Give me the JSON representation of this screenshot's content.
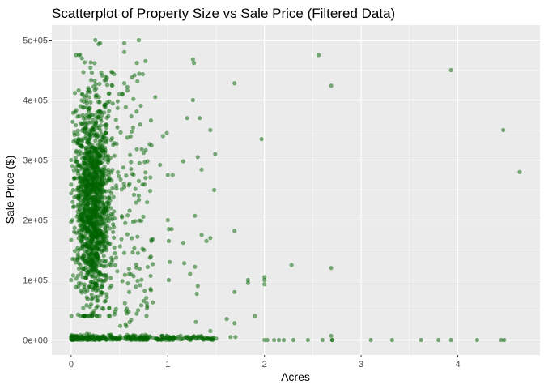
{
  "chart_data": {
    "type": "scatter",
    "title": "Scatterplot of Property Size vs Sale Price (Filtered Data)",
    "xlabel": "Acres",
    "ylabel": "Sale Price ($)",
    "xlim": [
      -0.2,
      4.85
    ],
    "ylim": [
      -25000,
      525000
    ],
    "x_ticks": [
      0,
      1,
      2,
      3,
      4
    ],
    "x_tick_labels": [
      "0",
      "1",
      "2",
      "3",
      "4"
    ],
    "y_ticks": [
      0,
      100000,
      200000,
      300000,
      400000,
      500000
    ],
    "y_tick_labels": [
      "0e+00",
      "1e+05",
      "2e+05",
      "3e+05",
      "4e+05",
      "5e+05"
    ],
    "grid": true,
    "legend": "none",
    "colors": {
      "point": "#006400",
      "panel": "#ebebeb",
      "grid": "#ffffff"
    },
    "point_alpha": 0.5,
    "points": [
      [
        0.05,
        475000
      ],
      [
        0.08,
        475000
      ],
      [
        0.25,
        500000
      ],
      [
        0.3,
        495000
      ],
      [
        0.55,
        495000
      ],
      [
        0.55,
        480000
      ],
      [
        0.7,
        500000
      ],
      [
        0.68,
        462000
      ],
      [
        0.77,
        465000
      ],
      [
        1.26,
        468000
      ],
      [
        1.27,
        462000
      ],
      [
        2.56,
        475000
      ],
      [
        3.93,
        450000
      ],
      [
        1.69,
        428000
      ],
      [
        2.69,
        424000
      ],
      [
        0.55,
        428000
      ],
      [
        0.63,
        438000
      ],
      [
        0.42,
        425000
      ],
      [
        0.5,
        410000
      ],
      [
        1.26,
        400000
      ],
      [
        0.87,
        405000
      ],
      [
        1.2,
        370000
      ],
      [
        1.33,
        370000
      ],
      [
        1.44,
        350000
      ],
      [
        0.99,
        345000
      ],
      [
        0.95,
        340000
      ],
      [
        1.97,
        335000
      ],
      [
        0.68,
        318000
      ],
      [
        0.73,
        318000
      ],
      [
        0.75,
        312000
      ],
      [
        0.79,
        298000
      ],
      [
        0.92,
        292000
      ],
      [
        1.16,
        298000
      ],
      [
        1.35,
        284000
      ],
      [
        1.49,
        310000
      ],
      [
        1.05,
        275000
      ],
      [
        1.0,
        275000
      ],
      [
        1.31,
        305000
      ],
      [
        1.48,
        250000
      ],
      [
        0.62,
        285000
      ],
      [
        0.7,
        265000
      ],
      [
        0.55,
        255000
      ],
      [
        4.47,
        350000
      ],
      [
        4.64,
        280000
      ],
      [
        1.0,
        200000
      ],
      [
        1.28,
        207000
      ],
      [
        1.01,
        185000
      ],
      [
        1.04,
        185000
      ],
      [
        1.35,
        175000
      ],
      [
        1.44,
        170000
      ],
      [
        1.16,
        162000
      ],
      [
        1.4,
        165000
      ],
      [
        1.69,
        182000
      ],
      [
        1.01,
        165000
      ],
      [
        0.56,
        195000
      ],
      [
        0.52,
        168000
      ],
      [
        0.55,
        145000
      ],
      [
        0.83,
        165000
      ],
      [
        1.02,
        130000
      ],
      [
        1.17,
        128000
      ],
      [
        1.28,
        122000
      ],
      [
        1.23,
        110000
      ],
      [
        1.31,
        90000
      ],
      [
        1.3,
        77000
      ],
      [
        1.69,
        80000
      ],
      [
        1.83,
        100000
      ],
      [
        1.83,
        95000
      ],
      [
        2.0,
        105000
      ],
      [
        2.0,
        100000
      ],
      [
        2.0,
        93000
      ],
      [
        2.28,
        125000
      ],
      [
        2.69,
        120000
      ],
      [
        0.82,
        85000
      ],
      [
        1.01,
        100000
      ],
      [
        0.6,
        110000
      ],
      [
        0.6,
        80000
      ],
      [
        0.75,
        65000
      ],
      [
        0.78,
        40000
      ],
      [
        1.29,
        30000
      ],
      [
        1.69,
        28000
      ],
      [
        1.9,
        40000
      ],
      [
        1.61,
        35000
      ],
      [
        1.44,
        15000
      ],
      [
        1.65,
        5000
      ],
      [
        1.7,
        5000
      ],
      [
        2.69,
        7000
      ],
      [
        2.7,
        0
      ],
      [
        2.0,
        0
      ],
      [
        2.03,
        0
      ],
      [
        2.1,
        0
      ],
      [
        2.15,
        0
      ],
      [
        2.2,
        0
      ],
      [
        2.3,
        0
      ],
      [
        2.45,
        0
      ],
      [
        2.6,
        0
      ],
      [
        2.7,
        0
      ],
      [
        3.1,
        0
      ],
      [
        3.32,
        0
      ],
      [
        3.62,
        0
      ],
      [
        3.8,
        0
      ],
      [
        3.93,
        0
      ],
      [
        4.2,
        0
      ],
      [
        4.45,
        0
      ],
      [
        4.48,
        0
      ],
      [
        0.0,
        300000
      ],
      [
        0.02,
        250000
      ],
      [
        0.1,
        250000
      ]
    ]
  }
}
